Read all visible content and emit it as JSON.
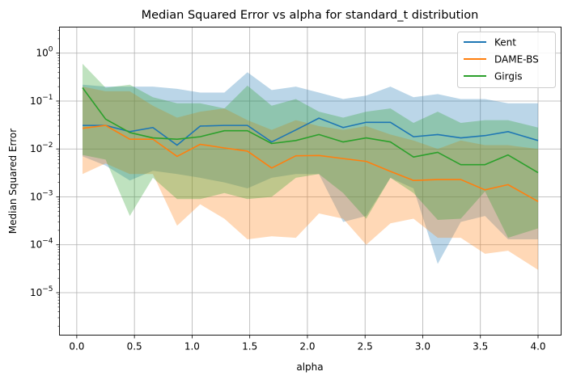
{
  "chart_data": {
    "type": "line",
    "title": "Median Squared Error vs alpha for standard_t distribution",
    "xlabel": "alpha",
    "ylabel": "Median Squared Error",
    "xlim": [
      -0.15,
      4.2
    ],
    "ylim": [
      1.3e-06,
      3.5
    ],
    "yscale": "log",
    "grid": true,
    "legend_position": "top-right",
    "x_ticks": [
      0.0,
      0.5,
      1.0,
      1.5,
      2.0,
      2.5,
      3.0,
      3.5,
      4.0
    ],
    "x_tick_labels": [
      "0.0",
      "0.5",
      "1.0",
      "1.5",
      "2.0",
      "2.5",
      "3.0",
      "3.5",
      "4.0"
    ],
    "y_ticks": [
      {
        "value": 1e-05,
        "base": "10",
        "exp": "−5"
      },
      {
        "value": 0.0001,
        "base": "10",
        "exp": "−4"
      },
      {
        "value": 0.001,
        "base": "10",
        "exp": "−3"
      },
      {
        "value": 0.01,
        "base": "10",
        "exp": "−2"
      },
      {
        "value": 0.1,
        "base": "10",
        "exp": "−1"
      },
      {
        "value": 1,
        "base": "10",
        "exp": "0"
      }
    ],
    "x": [
      0.05,
      0.25,
      0.46,
      0.66,
      0.87,
      1.07,
      1.28,
      1.48,
      1.69,
      1.9,
      2.1,
      2.31,
      2.51,
      2.72,
      2.92,
      3.13,
      3.33,
      3.54,
      3.74,
      4.0
    ],
    "series": [
      {
        "name": "Kent",
        "color": "#1f77b4",
        "values": [
          0.031,
          0.031,
          0.023,
          0.028,
          0.012,
          0.03,
          0.031,
          0.031,
          0.014,
          0.025,
          0.044,
          0.028,
          0.036,
          0.036,
          0.018,
          0.02,
          0.017,
          0.019,
          0.023,
          0.015
        ],
        "upper": [
          0.22,
          0.2,
          0.2,
          0.2,
          0.18,
          0.15,
          0.15,
          0.4,
          0.17,
          0.2,
          0.15,
          0.11,
          0.13,
          0.2,
          0.12,
          0.14,
          0.11,
          0.11,
          0.09,
          0.09
        ],
        "lower": [
          0.007,
          0.0045,
          0.0022,
          0.0035,
          0.003,
          0.0025,
          0.002,
          0.0015,
          0.0025,
          0.003,
          0.003,
          0.0003,
          0.0004,
          0.0025,
          0.0015,
          4e-05,
          0.0003,
          0.0004,
          0.00013,
          0.00013
        ]
      },
      {
        "name": "DAME-BS",
        "color": "#ff7f0e",
        "values": [
          0.027,
          0.031,
          0.016,
          0.016,
          0.007,
          0.0125,
          0.0105,
          0.009,
          0.004,
          0.0072,
          0.0073,
          0.0063,
          0.0055,
          0.0034,
          0.0022,
          0.0023,
          0.0023,
          0.0014,
          0.0018,
          0.0008
        ],
        "upper": [
          0.2,
          0.16,
          0.16,
          0.08,
          0.045,
          0.06,
          0.07,
          0.04,
          0.025,
          0.04,
          0.03,
          0.025,
          0.03,
          0.02,
          0.015,
          0.01,
          0.015,
          0.012,
          0.012,
          0.01
        ],
        "lower": [
          0.003,
          0.005,
          0.003,
          0.003,
          0.00025,
          0.0007,
          0.00035,
          0.00013,
          0.00015,
          0.00014,
          0.00045,
          0.00035,
          0.0001,
          0.00028,
          0.00035,
          0.00014,
          0.00014,
          6.5e-05,
          7.5e-05,
          3e-05
        ]
      },
      {
        "name": "Girgis",
        "color": "#2ca02c",
        "values": [
          0.19,
          0.042,
          0.022,
          0.017,
          0.016,
          0.018,
          0.024,
          0.024,
          0.013,
          0.015,
          0.02,
          0.014,
          0.017,
          0.014,
          0.0068,
          0.0085,
          0.0047,
          0.0047,
          0.0075,
          0.0032
        ],
        "upper": [
          0.6,
          0.19,
          0.22,
          0.12,
          0.09,
          0.09,
          0.07,
          0.21,
          0.08,
          0.11,
          0.06,
          0.045,
          0.06,
          0.07,
          0.035,
          0.06,
          0.035,
          0.04,
          0.04,
          0.028
        ],
        "lower": [
          0.0075,
          0.006,
          0.0004,
          0.0025,
          0.0009,
          0.0009,
          0.0012,
          0.0009,
          0.001,
          0.0025,
          0.003,
          0.0012,
          0.00035,
          0.0025,
          0.0012,
          0.00033,
          0.00035,
          0.0013,
          0.00014,
          0.00022
        ]
      }
    ]
  }
}
